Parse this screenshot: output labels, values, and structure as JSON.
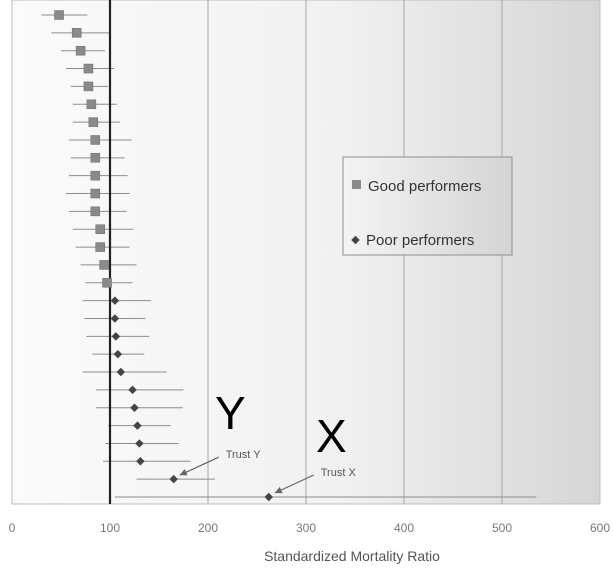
{
  "chart_data": {
    "type": "scatter",
    "title": "",
    "xlabel": "Standardized Mortality Ratio",
    "ylabel": "",
    "xlim": [
      0,
      600
    ],
    "x_ticks": [
      "0",
      "100",
      "200",
      "300",
      "400",
      "500",
      "600"
    ],
    "x_tick_values": [
      0,
      100,
      200,
      300,
      400,
      500,
      600
    ],
    "reference_line": 100,
    "grid": "vertical",
    "legend": {
      "placement": "center-right",
      "entries": [
        {
          "label": "Good performers",
          "marker": "square",
          "color": "#8a8a8a"
        },
        {
          "label": "Poor performers",
          "marker": "diamond",
          "color": "#555555"
        }
      ]
    },
    "series": [
      {
        "name": "Good performers",
        "marker": "square",
        "color": "#8a8a8a",
        "points": [
          {
            "smr": 48,
            "low": 30,
            "high": 77
          },
          {
            "smr": 66,
            "low": 40,
            "high": 100
          },
          {
            "smr": 70,
            "low": 50,
            "high": 95
          },
          {
            "smr": 78,
            "low": 55,
            "high": 104
          },
          {
            "smr": 78,
            "low": 60,
            "high": 98
          },
          {
            "smr": 81,
            "low": 62,
            "high": 107
          },
          {
            "smr": 83,
            "low": 62,
            "high": 110
          },
          {
            "smr": 85,
            "low": 58,
            "high": 122
          },
          {
            "smr": 85,
            "low": 60,
            "high": 115
          },
          {
            "smr": 85,
            "low": 58,
            "high": 118
          },
          {
            "smr": 85,
            "low": 55,
            "high": 120
          },
          {
            "smr": 85,
            "low": 58,
            "high": 117
          },
          {
            "smr": 90,
            "low": 62,
            "high": 124
          },
          {
            "smr": 90,
            "low": 65,
            "high": 120
          },
          {
            "smr": 94,
            "low": 70,
            "high": 127
          },
          {
            "smr": 97,
            "low": 75,
            "high": 123
          }
        ]
      },
      {
        "name": "Poor performers",
        "marker": "diamond",
        "color": "#555555",
        "points": [
          {
            "smr": 105,
            "low": 72,
            "high": 142
          },
          {
            "smr": 105,
            "low": 74,
            "high": 136
          },
          {
            "smr": 106,
            "low": 76,
            "high": 140
          },
          {
            "smr": 108,
            "low": 82,
            "high": 135
          },
          {
            "smr": 111,
            "low": 72,
            "high": 158
          },
          {
            "smr": 123,
            "low": 86,
            "high": 175
          },
          {
            "smr": 125,
            "low": 86,
            "high": 174
          },
          {
            "smr": 128,
            "low": 98,
            "high": 162
          },
          {
            "smr": 130,
            "low": 95,
            "high": 170
          },
          {
            "smr": 131,
            "low": 93,
            "high": 182
          },
          {
            "smr": 165,
            "low": 127,
            "high": 207
          },
          {
            "smr": 262,
            "low": 105,
            "high": 535
          }
        ]
      }
    ],
    "annotations": [
      {
        "text": "Trust Y",
        "smr": 165
      },
      {
        "text": "Trust X",
        "smr": 262
      }
    ],
    "overlay_labels": [
      {
        "text": "Y",
        "near": "Trust Y"
      },
      {
        "text": "X",
        "near": "Trust X"
      }
    ]
  }
}
